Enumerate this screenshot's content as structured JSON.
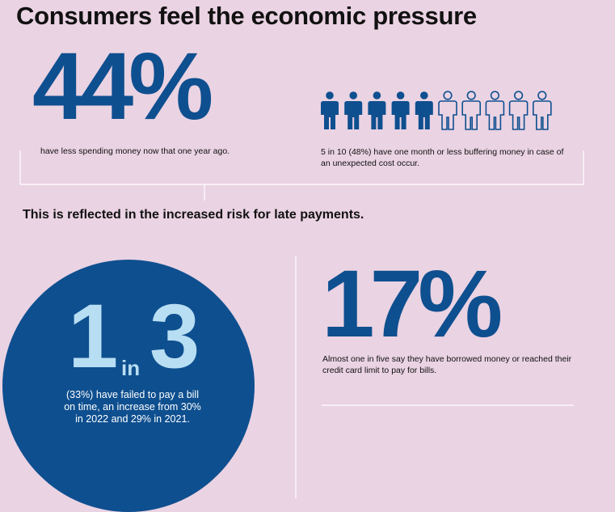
{
  "headline": "Consumers feel the economic pressure",
  "stat1": {
    "value": "44%",
    "caption": "have less spending money now that one year ago."
  },
  "stat2": {
    "people_total": 10,
    "people_filled": 5,
    "caption": "5 in 10 (48%) have one month or less buffering money in case of an unexpected cost occur."
  },
  "subheading": "This is reflected in the increased risk for late payments.",
  "stat3": {
    "number_one": "1",
    "in_text": "in",
    "number_three": "3",
    "description": "(33%) have failed to pay a bill on time, an increase from 30% in 2022 and 29% in 2021."
  },
  "stat4": {
    "value": "17%",
    "caption": "Almost one in five say they have borrowed money or reached their credit card limit to pay for bills."
  },
  "colors": {
    "background": "#ead3e3",
    "primary_blue": "#0e4f8f",
    "light_blue": "#b8def3",
    "lines": "#ffffff"
  }
}
